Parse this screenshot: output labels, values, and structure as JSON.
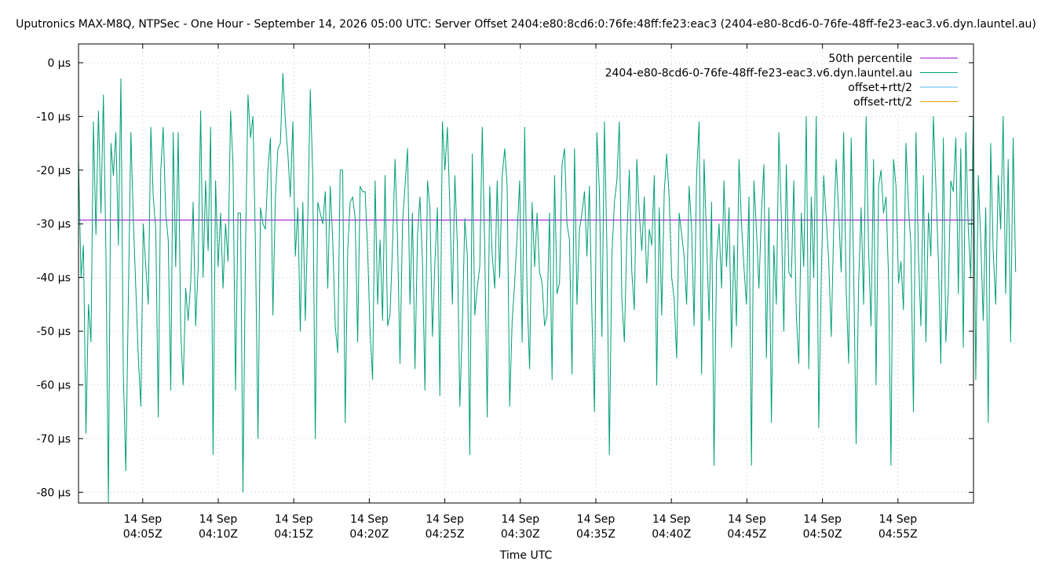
{
  "chart_data": {
    "type": "line",
    "title": "Uputronics MAX-M8Q, NTPSec - One Hour - September 14, 2026 05:00 UTC: Server Offset 2404:e80:8cd6:0:76fe:48ff:fe23:eac3 (2404-e80-8cd6-0-76fe-48ff-fe23-eac3.v6.dyn.launtel.au)",
    "xlabel": "Time UTC",
    "ylabel": "",
    "x_range_minutes": [
      0.75,
      60.0
    ],
    "ylim": [
      -82,
      3.5
    ],
    "grid": true,
    "legend_placement": "top-right",
    "y_ticks": [
      {
        "value": 0,
        "label": "0 µs"
      },
      {
        "value": -10,
        "label": "-10 µs"
      },
      {
        "value": -20,
        "label": "-20 µs"
      },
      {
        "value": -30,
        "label": "-30 µs"
      },
      {
        "value": -40,
        "label": "-40 µs"
      },
      {
        "value": -50,
        "label": "-50 µs"
      },
      {
        "value": -60,
        "label": "-60 µs"
      },
      {
        "value": -70,
        "label": "-70 µs"
      },
      {
        "value": -80,
        "label": "-80 µs"
      }
    ],
    "x_ticks": [
      {
        "minute": 5,
        "line1": "14 Sep",
        "line2": "04:05Z"
      },
      {
        "minute": 10,
        "line1": "14 Sep",
        "line2": "04:10Z"
      },
      {
        "minute": 15,
        "line1": "14 Sep",
        "line2": "04:15Z"
      },
      {
        "minute": 20,
        "line1": "14 Sep",
        "line2": "04:20Z"
      },
      {
        "minute": 25,
        "line1": "14 Sep",
        "line2": "04:25Z"
      },
      {
        "minute": 30,
        "line1": "14 Sep",
        "line2": "04:30Z"
      },
      {
        "minute": 35,
        "line1": "14 Sep",
        "line2": "04:35Z"
      },
      {
        "minute": 40,
        "line1": "14 Sep",
        "line2": "04:40Z"
      },
      {
        "minute": 45,
        "line1": "14 Sep",
        "line2": "04:45Z"
      },
      {
        "minute": 50,
        "line1": "14 Sep",
        "line2": "04:50Z"
      },
      {
        "minute": 55,
        "line1": "14 Sep",
        "line2": "04:55Z"
      }
    ],
    "series": [
      {
        "name": "50th percentile",
        "color": "#9400d3",
        "kind": "hline",
        "value": -29.3
      },
      {
        "name": "2404-e80-8cd6-0-76fe-48ff-fe23-eac3.v6.dyn.launtel.au",
        "color": "#009e73",
        "kind": "line",
        "start_minute": 0.75,
        "step_minutes": 0.165,
        "values": [
          -18,
          -40,
          -34,
          -69,
          -45,
          -52,
          -11,
          -32,
          -9,
          -28,
          -6,
          -35,
          -82,
          -15,
          -21,
          -13,
          -34,
          -3,
          -58,
          -76,
          -44,
          -13,
          -29,
          -42,
          -55,
          -64,
          -30,
          -38,
          -45,
          -12,
          -25,
          -31,
          -66,
          -20,
          -12,
          -28,
          -33,
          -61,
          -13,
          -38,
          -13,
          -50,
          -60,
          -42,
          -48,
          -41,
          -26,
          -49,
          -38,
          -9,
          -40,
          -22,
          -35,
          -12,
          -73,
          -22,
          -38,
          -28,
          -42,
          -30,
          -37,
          -9,
          -19,
          -61,
          -28,
          -28,
          -80,
          -35,
          -6,
          -14,
          -10,
          -34,
          -70,
          -27,
          -30,
          -31,
          -20,
          -14,
          -47,
          -25,
          -16,
          -15,
          -2,
          -11,
          -17,
          -25,
          -11,
          -36,
          -27,
          -50,
          -26,
          -48,
          -29,
          -5,
          -21,
          -70,
          -26,
          -28,
          -30,
          -24,
          -42,
          -23,
          -33,
          -49,
          -54,
          -20,
          -20,
          -67,
          -35,
          -26,
          -25,
          -29,
          -52,
          -23,
          -24,
          -24,
          -35,
          -50,
          -59,
          -22,
          -45,
          -33,
          -48,
          -21,
          -49,
          -47,
          -34,
          -18,
          -33,
          -56,
          -30,
          -23,
          -16,
          -45,
          -28,
          -57,
          -32,
          -25,
          -37,
          -61,
          -22,
          -27,
          -51,
          -37,
          -27,
          -62,
          -11,
          -20,
          -12,
          -27,
          -45,
          -21,
          -34,
          -64,
          -49,
          -29,
          -36,
          -73,
          -17,
          -47,
          -42,
          -38,
          -12,
          -35,
          -66,
          -23,
          -36,
          -42,
          -22,
          -40,
          -21,
          -16,
          -23,
          -64,
          -48,
          -41,
          -32,
          -22,
          -52,
          -12,
          -43,
          -57,
          -26,
          -38,
          -28,
          -39,
          -41,
          -49,
          -47,
          -28,
          -59,
          -21,
          -43,
          -41,
          -19,
          -16,
          -30,
          -33,
          -58,
          -16,
          -45,
          -31,
          -28,
          -24,
          -36,
          -23,
          -47,
          -65,
          -13,
          -24,
          -51,
          -11,
          -34,
          -73,
          -36,
          -26,
          -22,
          -11,
          -44,
          -52,
          -33,
          -20,
          -39,
          -46,
          -18,
          -28,
          -35,
          -25,
          -41,
          -31,
          -34,
          -21,
          -60,
          -27,
          -47,
          -24,
          -17,
          -25,
          -40,
          -44,
          -55,
          -28,
          -32,
          -36,
          -45,
          -23,
          -31,
          -49,
          -21,
          -11,
          -58,
          -18,
          -33,
          -48,
          -26,
          -75,
          -37,
          -30,
          -42,
          -22,
          -38,
          -27,
          -53,
          -34,
          -49,
          -18,
          -30,
          -38,
          -45,
          -25,
          -75,
          -22,
          -31,
          -42,
          -28,
          -19,
          -55,
          -27,
          -67,
          -34,
          -45,
          -13,
          -29,
          -50,
          -19,
          -39,
          -40,
          -22,
          -47,
          -56,
          -28,
          -38,
          -10,
          -57,
          -25,
          -40,
          -10,
          -68,
          -40,
          -21,
          -29,
          -37,
          -51,
          -31,
          -18,
          -28,
          -39,
          -13,
          -42,
          -56,
          -14,
          -38,
          -71,
          -41,
          -27,
          -45,
          -10,
          -35,
          -49,
          -18,
          -60,
          -23,
          -20,
          -28,
          -25,
          -40,
          -75,
          -18,
          -23,
          -41,
          -37,
          -46,
          -15,
          -27,
          -34,
          -65,
          -13,
          -36,
          -49,
          -21,
          -52,
          -28,
          -36,
          -10,
          -23,
          -37,
          -56,
          -14,
          -52,
          -42,
          -22,
          -24,
          -14,
          -43,
          -16,
          -53,
          -13,
          -31,
          -40,
          -10,
          -59,
          -21,
          -33,
          -48,
          -27,
          -67,
          -15,
          -35,
          -45,
          -21,
          -31,
          -10,
          -43,
          -18,
          -52,
          -14,
          -39
        ]
      },
      {
        "name": "offset+rtt/2",
        "color": "#56b4e9",
        "kind": "legend-only"
      },
      {
        "name": "offset-rtt/2",
        "color": "#e69f00",
        "kind": "legend-only"
      }
    ]
  }
}
